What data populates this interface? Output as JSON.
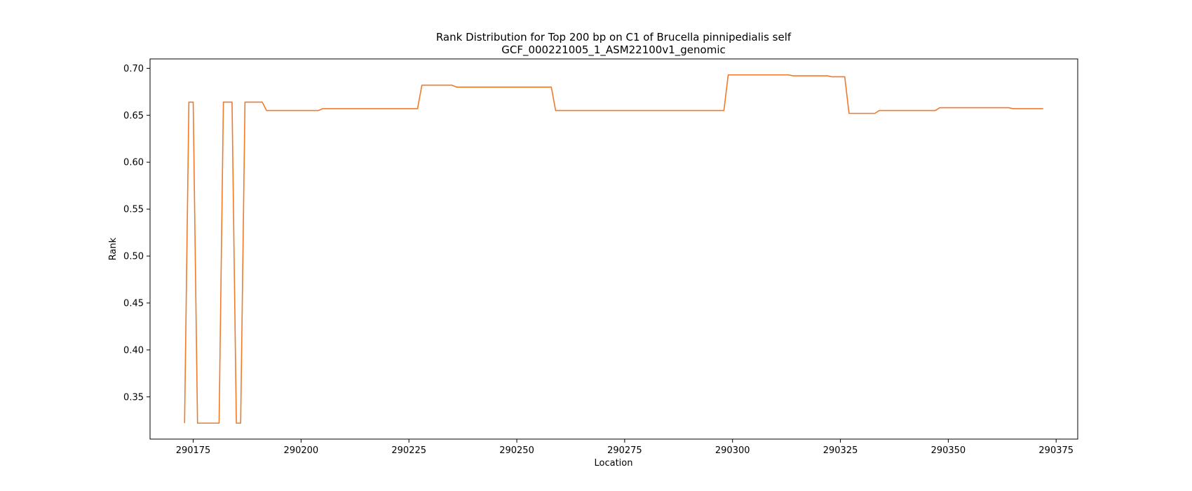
{
  "chart_data": {
    "type": "line",
    "title": "Rank Distribution for Top 200 bp on C1 of Brucella pinnipedialis self",
    "subtitle": "GCF_000221005_1_ASM22100v1_genomic",
    "xlabel": "Location",
    "ylabel": "Rank",
    "xlim": [
      290165,
      290380
    ],
    "ylim": [
      0.305,
      0.71
    ],
    "xticks": [
      290175,
      290200,
      290225,
      290250,
      290275,
      290300,
      290325,
      290350,
      290375
    ],
    "yticks": [
      0.35,
      0.4,
      0.45,
      0.5,
      0.55,
      0.6,
      0.65,
      0.7
    ],
    "grid": false,
    "series": [
      {
        "color": "#f07a2a",
        "x": [
          290173,
          290174,
          290175,
          290176,
          290181,
          290182,
          290184,
          290185,
          290186,
          290187,
          290191,
          290192,
          290204,
          290205,
          290227,
          290228,
          290235,
          290236,
          290258,
          290259,
          290298,
          290299,
          290313,
          290314,
          290322,
          290323,
          290326,
          290327,
          290333,
          290334,
          290347,
          290348,
          290364,
          290365,
          290372
        ],
        "y": [
          0.322,
          0.664,
          0.664,
          0.322,
          0.322,
          0.664,
          0.664,
          0.322,
          0.322,
          0.664,
          0.664,
          0.655,
          0.655,
          0.657,
          0.657,
          0.682,
          0.682,
          0.68,
          0.68,
          0.655,
          0.655,
          0.693,
          0.693,
          0.692,
          0.692,
          0.691,
          0.691,
          0.652,
          0.652,
          0.655,
          0.655,
          0.658,
          0.658,
          0.657,
          0.657
        ]
      }
    ]
  }
}
